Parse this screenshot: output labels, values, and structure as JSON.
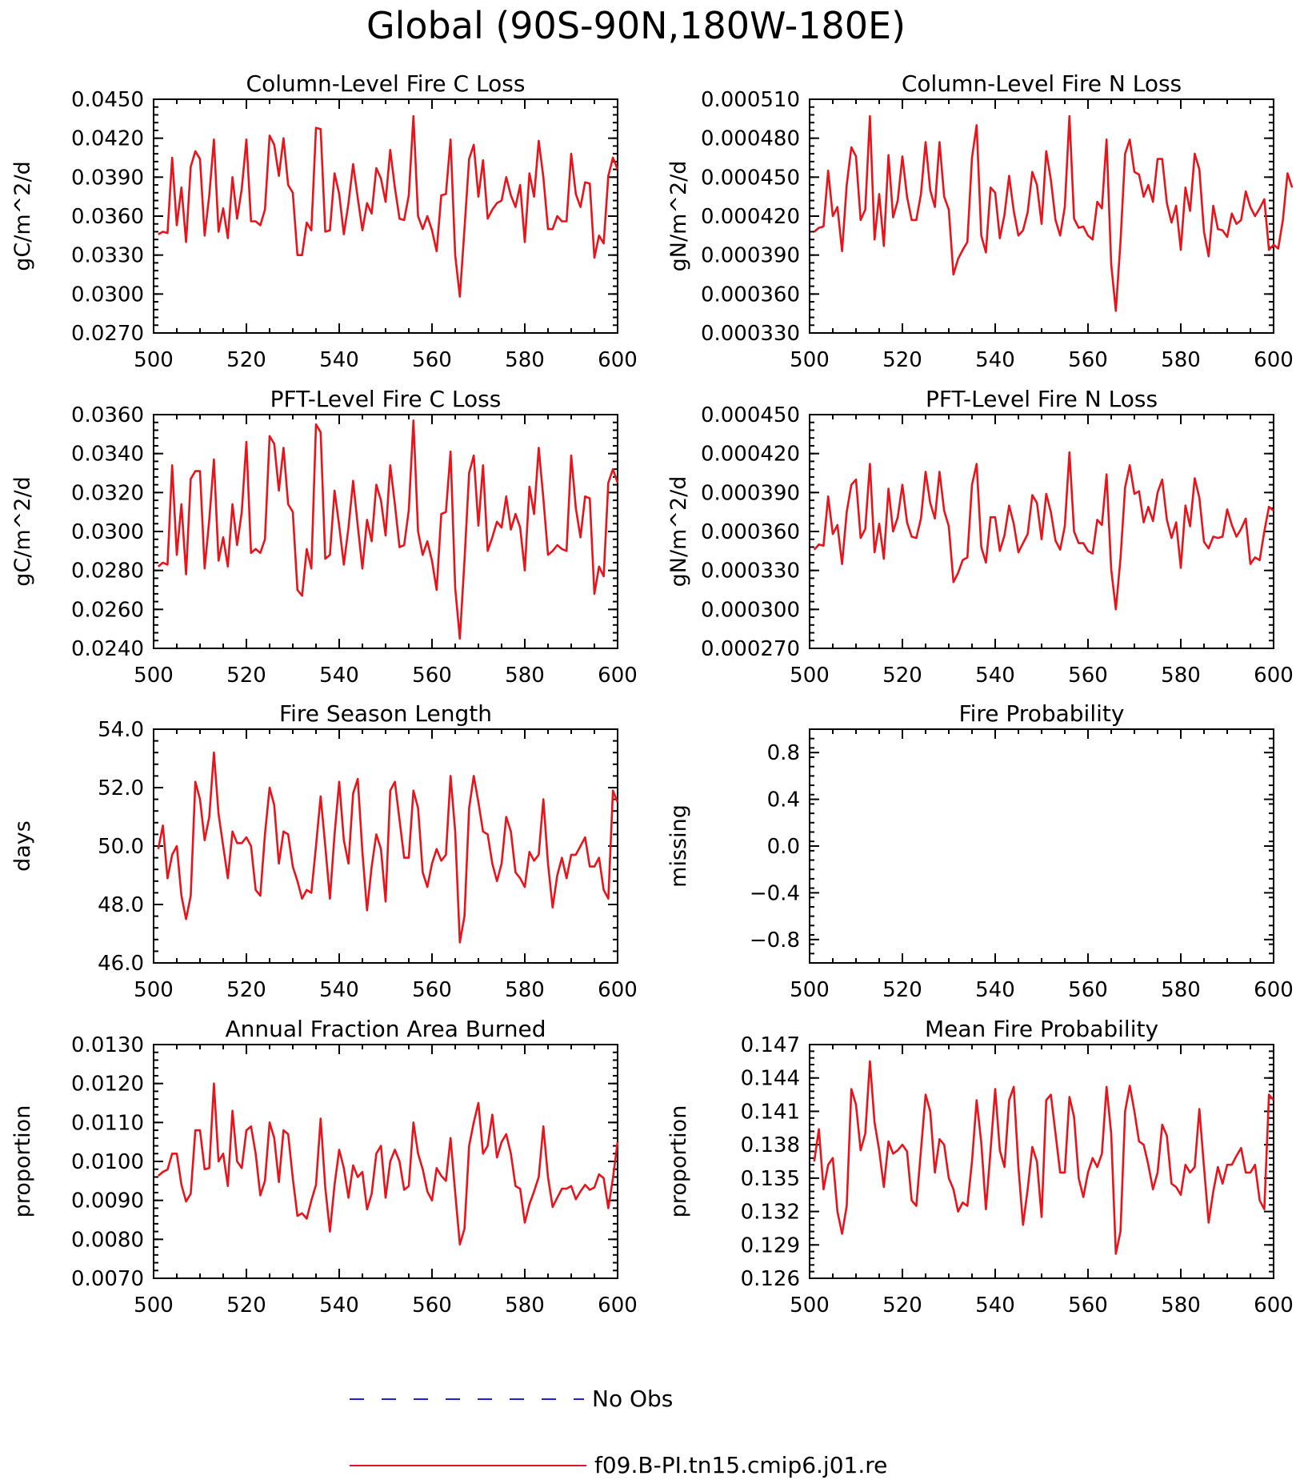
{
  "figure": {
    "title": "Global (90S-90N,180W-180E)"
  },
  "legend": {
    "items": [
      {
        "label": "No Obs",
        "color": "#1f1fd6",
        "style": "dashed"
      },
      {
        "label": "f09.B-PI.tn15.cmip6.j01.re",
        "color": "#e8141b",
        "style": "solid"
      }
    ]
  },
  "chart_data": [
    {
      "type": "line",
      "title": "Column-Level Fire C Loss",
      "ylabel": "gC/m^2/d",
      "xlim": [
        500,
        600
      ],
      "xticks": [
        "500",
        "520",
        "540",
        "560",
        "580",
        "600"
      ],
      "ylim": [
        0.027,
        0.045
      ],
      "yticks": [
        "0.0270",
        "0.0300",
        "0.0330",
        "0.0360",
        "0.0390",
        "0.0420",
        "0.0450"
      ],
      "series": [
        {
          "color": "#e8141b",
          "x_start": 501,
          "values": [
            0.0346,
            0.0348,
            0.0347,
            0.0405,
            0.0353,
            0.0382,
            0.034,
            0.0398,
            0.041,
            0.0404,
            0.0345,
            0.0376,
            0.0419,
            0.0348,
            0.0366,
            0.0343,
            0.039,
            0.0358,
            0.0381,
            0.0419,
            0.0356,
            0.0356,
            0.0353,
            0.0365,
            0.0422,
            0.0415,
            0.0391,
            0.042,
            0.0384,
            0.0378,
            0.033,
            0.033,
            0.0355,
            0.0349,
            0.0428,
            0.0427,
            0.0348,
            0.0349,
            0.0393,
            0.0377,
            0.0346,
            0.037,
            0.04,
            0.0374,
            0.0349,
            0.037,
            0.0362,
            0.0397,
            0.0389,
            0.0371,
            0.0411,
            0.0382,
            0.0358,
            0.0357,
            0.0376,
            0.0437,
            0.036,
            0.035,
            0.036,
            0.0349,
            0.0333,
            0.0376,
            0.0377,
            0.0419,
            0.033,
            0.0298,
            0.035,
            0.0404,
            0.0415,
            0.0375,
            0.0403,
            0.0358,
            0.0365,
            0.037,
            0.0372,
            0.039,
            0.0376,
            0.0367,
            0.0384,
            0.034,
            0.0393,
            0.0375,
            0.0418,
            0.039,
            0.035,
            0.035,
            0.036,
            0.0356,
            0.0356,
            0.0408,
            0.0377,
            0.0367,
            0.0386,
            0.0385,
            0.0328,
            0.0345,
            0.0339,
            0.0391,
            0.0405,
            0.0396
          ]
        }
      ]
    },
    {
      "type": "line",
      "title": "Column-Level Fire N Loss",
      "ylabel": "gN/m^2/d",
      "xlim": [
        500,
        600
      ],
      "xticks": [
        "500",
        "520",
        "540",
        "560",
        "580",
        "600"
      ],
      "ylim": [
        0.00033,
        0.00051
      ],
      "yticks": [
        "0.000330",
        "0.000360",
        "0.000390",
        "0.000420",
        "0.000450",
        "0.000480",
        "0.000510"
      ],
      "series": [
        {
          "color": "#e8141b",
          "x_start": 501,
          "values": [
            0.000408,
            0.000411,
            0.000412,
            0.000455,
            0.00042,
            0.000427,
            0.000393,
            0.000444,
            0.000473,
            0.000466,
            0.000417,
            0.000425,
            0.000497,
            0.000402,
            0.000437,
            0.000397,
            0.000467,
            0.000419,
            0.000432,
            0.000466,
            0.000435,
            0.000417,
            0.000417,
            0.000437,
            0.000477,
            0.00044,
            0.000427,
            0.000477,
            0.000435,
            0.000425,
            0.000375,
            0.000387,
            0.000394,
            0.0004,
            0.000465,
            0.00049,
            0.000405,
            0.000392,
            0.000442,
            0.000438,
            0.000403,
            0.000421,
            0.000451,
            0.000424,
            0.000405,
            0.000409,
            0.000423,
            0.000454,
            0.000444,
            0.000414,
            0.00047,
            0.000448,
            0.000417,
            0.000405,
            0.000427,
            0.000497,
            0.000418,
            0.000411,
            0.000412,
            0.000405,
            0.000402,
            0.000431,
            0.000426,
            0.000479,
            0.000383,
            0.000347,
            0.0004,
            0.000468,
            0.000479,
            0.000454,
            0.000452,
            0.000435,
            0.000444,
            0.000431,
            0.000464,
            0.000464,
            0.00043,
            0.000415,
            0.000428,
            0.000394,
            0.000442,
            0.000424,
            0.000468,
            0.000456,
            0.000408,
            0.000389,
            0.000428,
            0.00041,
            0.000409,
            0.000404,
            0.000422,
            0.000414,
            0.000417,
            0.000439,
            0.000427,
            0.00042,
            0.000426,
            0.000433,
            0.000394,
            0.000398,
            0.000395,
            0.000417,
            0.000453,
            0.000442
          ]
        }
      ]
    },
    {
      "type": "line",
      "title": "PFT-Level Fire C Loss",
      "ylabel": "gC/m^2/d",
      "xlim": [
        500,
        600
      ],
      "xticks": [
        "500",
        "520",
        "540",
        "560",
        "580",
        "600"
      ],
      "ylim": [
        0.024,
        0.036
      ],
      "yticks": [
        "0.0240",
        "0.0260",
        "0.0280",
        "0.0300",
        "0.0320",
        "0.0340",
        "0.0360"
      ],
      "series": [
        {
          "color": "#e8141b",
          "x_start": 501,
          "values": [
            0.0282,
            0.0284,
            0.0283,
            0.0334,
            0.0288,
            0.0314,
            0.0278,
            0.0327,
            0.0331,
            0.0331,
            0.0281,
            0.0306,
            0.0337,
            0.0285,
            0.0297,
            0.0282,
            0.0314,
            0.0293,
            0.031,
            0.0346,
            0.0289,
            0.0291,
            0.0289,
            0.0296,
            0.0349,
            0.0345,
            0.0321,
            0.0343,
            0.0314,
            0.031,
            0.027,
            0.0267,
            0.0291,
            0.0281,
            0.0355,
            0.0351,
            0.0286,
            0.0288,
            0.0321,
            0.0303,
            0.0283,
            0.0302,
            0.0326,
            0.0303,
            0.0281,
            0.0306,
            0.0295,
            0.0324,
            0.0316,
            0.0298,
            0.0334,
            0.0314,
            0.0292,
            0.0293,
            0.0311,
            0.0357,
            0.03,
            0.0288,
            0.0295,
            0.0285,
            0.027,
            0.0309,
            0.031,
            0.0341,
            0.0271,
            0.0245,
            0.0285,
            0.033,
            0.0339,
            0.0303,
            0.0334,
            0.029,
            0.0297,
            0.0305,
            0.0302,
            0.0318,
            0.0301,
            0.0309,
            0.0302,
            0.028,
            0.0323,
            0.0309,
            0.0343,
            0.0317,
            0.0288,
            0.029,
            0.0293,
            0.0291,
            0.029,
            0.0339,
            0.0312,
            0.0297,
            0.0318,
            0.0317,
            0.0268,
            0.0282,
            0.0277,
            0.0325,
            0.0332,
            0.0325
          ]
        }
      ]
    },
    {
      "type": "line",
      "title": "PFT-Level Fire N Loss",
      "ylabel": "gN/m^2/d",
      "xlim": [
        500,
        600
      ],
      "xticks": [
        "500",
        "520",
        "540",
        "560",
        "580",
        "600"
      ],
      "ylim": [
        0.00027,
        0.00045
      ],
      "yticks": [
        "0.000270",
        "0.000300",
        "0.000330",
        "0.000360",
        "0.000390",
        "0.000420",
        "0.000450"
      ],
      "series": [
        {
          "color": "#e8141b",
          "x_start": 501,
          "values": [
            0.000346,
            0.00035,
            0.000349,
            0.000387,
            0.000358,
            0.000365,
            0.000335,
            0.000375,
            0.000396,
            0.0004,
            0.000355,
            0.000362,
            0.000412,
            0.000344,
            0.000366,
            0.000339,
            0.000393,
            0.00036,
            0.000371,
            0.000396,
            0.000367,
            0.000356,
            0.000355,
            0.00037,
            0.000406,
            0.000382,
            0.00037,
            0.000406,
            0.000376,
            0.000364,
            0.000321,
            0.000328,
            0.000338,
            0.00034,
            0.000396,
            0.000412,
            0.000348,
            0.000336,
            0.000371,
            0.000371,
            0.000345,
            0.000357,
            0.00038,
            0.000366,
            0.000344,
            0.000351,
            0.000358,
            0.000388,
            0.000382,
            0.000354,
            0.000389,
            0.000375,
            0.000353,
            0.000346,
            0.000364,
            0.000421,
            0.00036,
            0.000351,
            0.000351,
            0.000345,
            0.000343,
            0.000369,
            0.000365,
            0.000404,
            0.000331,
            0.0003,
            0.000339,
            0.000394,
            0.000411,
            0.000389,
            0.000391,
            0.000367,
            0.000379,
            0.000368,
            0.00039,
            0.0004,
            0.000369,
            0.000355,
            0.000367,
            0.000332,
            0.00038,
            0.000364,
            0.000401,
            0.000386,
            0.000352,
            0.000347,
            0.000356,
            0.000355,
            0.000356,
            0.000377,
            0.000365,
            0.000356,
            0.000362,
            0.00037,
            0.000335,
            0.00034,
            0.000338,
            0.00036,
            0.000379,
            0.000376
          ]
        }
      ]
    },
    {
      "type": "line",
      "title": "Fire Season Length",
      "ylabel": "days",
      "xlim": [
        500,
        600
      ],
      "xticks": [
        "500",
        "520",
        "540",
        "560",
        "580",
        "600"
      ],
      "ylim": [
        46.0,
        54.0
      ],
      "yticks": [
        "46.0",
        "48.0",
        "50.0",
        "52.0",
        "54.0"
      ],
      "series": [
        {
          "color": "#e8141b",
          "x_start": 501,
          "values": [
            49.9,
            50.7,
            48.9,
            49.7,
            50.0,
            48.3,
            47.5,
            48.3,
            52.2,
            51.6,
            50.2,
            51.0,
            53.2,
            51.1,
            50.0,
            48.9,
            50.5,
            50.1,
            50.1,
            50.3,
            50.0,
            48.5,
            48.3,
            50.4,
            52.0,
            51.4,
            49.4,
            50.5,
            50.4,
            49.3,
            48.8,
            48.2,
            48.5,
            48.4,
            50.0,
            51.7,
            50.0,
            48.2,
            50.4,
            52.2,
            50.2,
            49.4,
            51.8,
            52.3,
            49.8,
            47.8,
            49.3,
            50.4,
            49.9,
            48.1,
            51.9,
            52.2,
            50.9,
            49.6,
            49.6,
            51.9,
            51.3,
            49.1,
            48.6,
            49.4,
            49.9,
            49.5,
            49.7,
            52.4,
            50.5,
            46.7,
            47.6,
            51.3,
            52.4,
            51.5,
            50.5,
            50.4,
            49.4,
            48.8,
            49.4,
            51.0,
            50.5,
            49.1,
            48.9,
            48.6,
            49.8,
            49.5,
            49.7,
            51.6,
            49.4,
            47.9,
            49.0,
            49.6,
            48.9,
            49.7,
            49.7,
            50.0,
            50.3,
            49.3,
            49.3,
            49.6,
            48.5,
            48.2,
            51.9,
            51.5
          ]
        }
      ]
    },
    {
      "type": "line",
      "title": "Fire Probability",
      "ylabel": "missing",
      "xlim": [
        500,
        600
      ],
      "xticks": [
        "500",
        "520",
        "540",
        "560",
        "580",
        "600"
      ],
      "ylim": [
        -1.0,
        1.0
      ],
      "yticks": [
        "−0.8",
        "−0.4",
        "0.0",
        "0.4",
        "0.8"
      ],
      "ytick_values": [
        -0.8,
        -0.4,
        0.0,
        0.4,
        0.8
      ],
      "series": []
    },
    {
      "type": "line",
      "title": "Annual Fraction Area Burned",
      "ylabel": "proportion",
      "xlim": [
        500,
        600
      ],
      "xticks": [
        "500",
        "520",
        "540",
        "560",
        "580",
        "600"
      ],
      "ylim": [
        0.007,
        0.013
      ],
      "yticks": [
        "0.0070",
        "0.0080",
        "0.0090",
        "0.0100",
        "0.0110",
        "0.0120",
        "0.0130"
      ],
      "series": [
        {
          "color": "#e8141b",
          "x_start": 501,
          "values": [
            0.00963,
            0.00973,
            0.00979,
            0.0102,
            0.0102,
            0.0094,
            0.00897,
            0.00917,
            0.0108,
            0.0108,
            0.0098,
            0.00983,
            0.012,
            0.01,
            0.0102,
            0.00937,
            0.0113,
            0.01,
            0.00983,
            0.0108,
            0.0109,
            0.0102,
            0.00913,
            0.0095,
            0.011,
            0.0106,
            0.00947,
            0.0108,
            0.0107,
            0.00957,
            0.0086,
            0.00867,
            0.00853,
            0.009,
            0.0094,
            0.0111,
            0.00933,
            0.0082,
            0.0094,
            0.0103,
            0.00983,
            0.00907,
            0.0099,
            0.0096,
            0.00973,
            0.00877,
            0.00917,
            0.0102,
            0.0104,
            0.00907,
            0.01,
            0.0103,
            0.01,
            0.00927,
            0.00937,
            0.011,
            0.0102,
            0.0098,
            0.00923,
            0.009,
            0.00983,
            0.00963,
            0.0095,
            0.0106,
            0.0092,
            0.00787,
            0.00827,
            0.0104,
            0.011,
            0.0115,
            0.0102,
            0.0104,
            0.0112,
            0.0101,
            0.0105,
            0.0107,
            0.0102,
            0.00937,
            0.0093,
            0.00843,
            0.0089,
            0.00923,
            0.0096,
            0.0109,
            0.0096,
            0.00883,
            0.00907,
            0.0093,
            0.0093,
            0.00937,
            0.00903,
            0.00923,
            0.0094,
            0.00927,
            0.00933,
            0.00967,
            0.00957,
            0.0088,
            0.00957,
            0.0105
          ]
        }
      ]
    },
    {
      "type": "line",
      "title": "Mean Fire Probability",
      "ylabel": "proportion",
      "xlim": [
        500,
        600
      ],
      "xticks": [
        "500",
        "520",
        "540",
        "560",
        "580",
        "600"
      ],
      "ylim": [
        0.126,
        0.147
      ],
      "yticks": [
        "0.126",
        "0.129",
        "0.132",
        "0.135",
        "0.138",
        "0.141",
        "0.144",
        "0.147"
      ],
      "series": [
        {
          "color": "#e8141b",
          "x_start": 501,
          "values": [
            0.1365,
            0.1394,
            0.134,
            0.1362,
            0.1368,
            0.132,
            0.13,
            0.1325,
            0.143,
            0.1416,
            0.1375,
            0.139,
            0.1455,
            0.14,
            0.1375,
            0.1342,
            0.1383,
            0.1372,
            0.1375,
            0.138,
            0.1374,
            0.133,
            0.1325,
            0.1375,
            0.1425,
            0.141,
            0.1355,
            0.1385,
            0.138,
            0.135,
            0.134,
            0.132,
            0.1328,
            0.1325,
            0.1365,
            0.142,
            0.1382,
            0.1322,
            0.1375,
            0.143,
            0.1375,
            0.136,
            0.142,
            0.1432,
            0.136,
            0.1308,
            0.134,
            0.1378,
            0.1365,
            0.1315,
            0.142,
            0.1425,
            0.139,
            0.1355,
            0.1355,
            0.1423,
            0.1405,
            0.135,
            0.1333,
            0.1355,
            0.1368,
            0.136,
            0.1372,
            0.1432,
            0.139,
            0.1282,
            0.1302,
            0.141,
            0.1433,
            0.141,
            0.1383,
            0.138,
            0.1362,
            0.134,
            0.1355,
            0.1398,
            0.1388,
            0.1345,
            0.1342,
            0.1335,
            0.1362,
            0.1355,
            0.136,
            0.1412,
            0.136,
            0.131,
            0.1338,
            0.136,
            0.1345,
            0.1362,
            0.1362,
            0.137,
            0.1377,
            0.1355,
            0.1355,
            0.1362,
            0.133,
            0.1322,
            0.1425,
            0.142
          ]
        }
      ]
    }
  ]
}
